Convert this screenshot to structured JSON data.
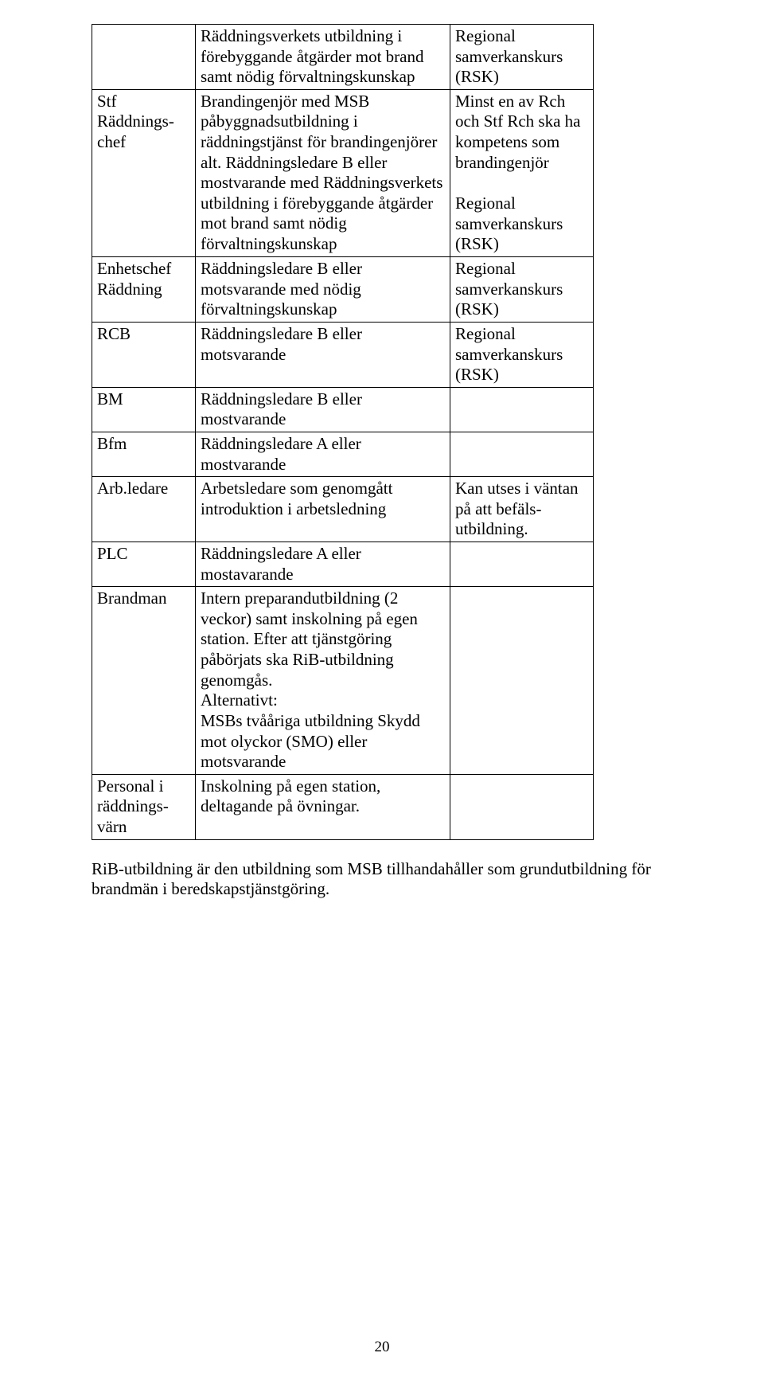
{
  "table": {
    "rows": [
      {
        "c1": [
          ""
        ],
        "c2": [
          "Räddningsverkets utbildning i förebyggande åtgärder mot brand samt nödig förvaltningskunskap"
        ],
        "c3": [
          "Regional samverkanskurs (RSK)"
        ]
      },
      {
        "c1": [
          "Stf Räddnings-chef"
        ],
        "c2": [
          "Brandingenjör med MSB påbyggnadsutbildning i räddningstjänst för brandingenjörer alt. Räddningsledare B eller mostvarande med Räddningsverkets utbildning i förebyggande åtgärder mot brand samt nödig förvaltningskunskap"
        ],
        "c3_list": [
          "Minst en av Rch och Stf Rch ska ha kompetens som brandingenjör",
          "",
          "Regional samverkanskurs (RSK)"
        ]
      },
      {
        "c1": [
          "Enhetschef Räddning"
        ],
        "c2": [
          "Räddningsledare B eller motsvarande med nödig förvaltningskunskap"
        ],
        "c3": [
          "Regional samverkanskurs (RSK)"
        ]
      },
      {
        "c1": [
          "RCB"
        ],
        "c2": [
          "Räddningsledare B eller motsvarande"
        ],
        "c3": [
          "Regional samverkanskurs (RSK)"
        ]
      },
      {
        "c1": [
          "BM"
        ],
        "c2": [
          "Räddningsledare B eller mostvarande"
        ],
        "c3": [
          ""
        ]
      },
      {
        "c1": [
          "Bfm"
        ],
        "c2": [
          "Räddningsledare A eller mostvarande"
        ],
        "c3": [
          ""
        ]
      },
      {
        "c1": [
          "Arb.ledare"
        ],
        "c2": [
          "Arbetsledare som genomgått introduktion i arbetsledning"
        ],
        "c3": [
          "Kan utses i väntan på att befäls-utbildning."
        ]
      },
      {
        "c1": [
          "PLC"
        ],
        "c2": [
          "Räddningsledare A eller mostavarande"
        ],
        "c3": [
          ""
        ]
      },
      {
        "c1": [
          "Brandman"
        ],
        "c2_list": [
          "Intern preparandutbildning (2 veckor) samt inskolning på egen station. Efter att tjänstgöring påbörjats ska RiB-utbildning genomgås.",
          "Alternativt:",
          "MSBs tvååriga utbildning Skydd mot olyckor (SMO) eller motsvarande"
        ],
        "c3": [
          ""
        ]
      },
      {
        "c1": [
          "Personal i räddnings-värn"
        ],
        "c2": [
          "Inskolning på egen station, deltagande på övningar."
        ],
        "c3": [
          ""
        ]
      }
    ]
  },
  "body_paragraph": "RiB-utbildning är den utbildning som MSB tillhandahåller som grundutbildning för brandmän i beredskapstjänstgöring.",
  "page_number": "20"
}
